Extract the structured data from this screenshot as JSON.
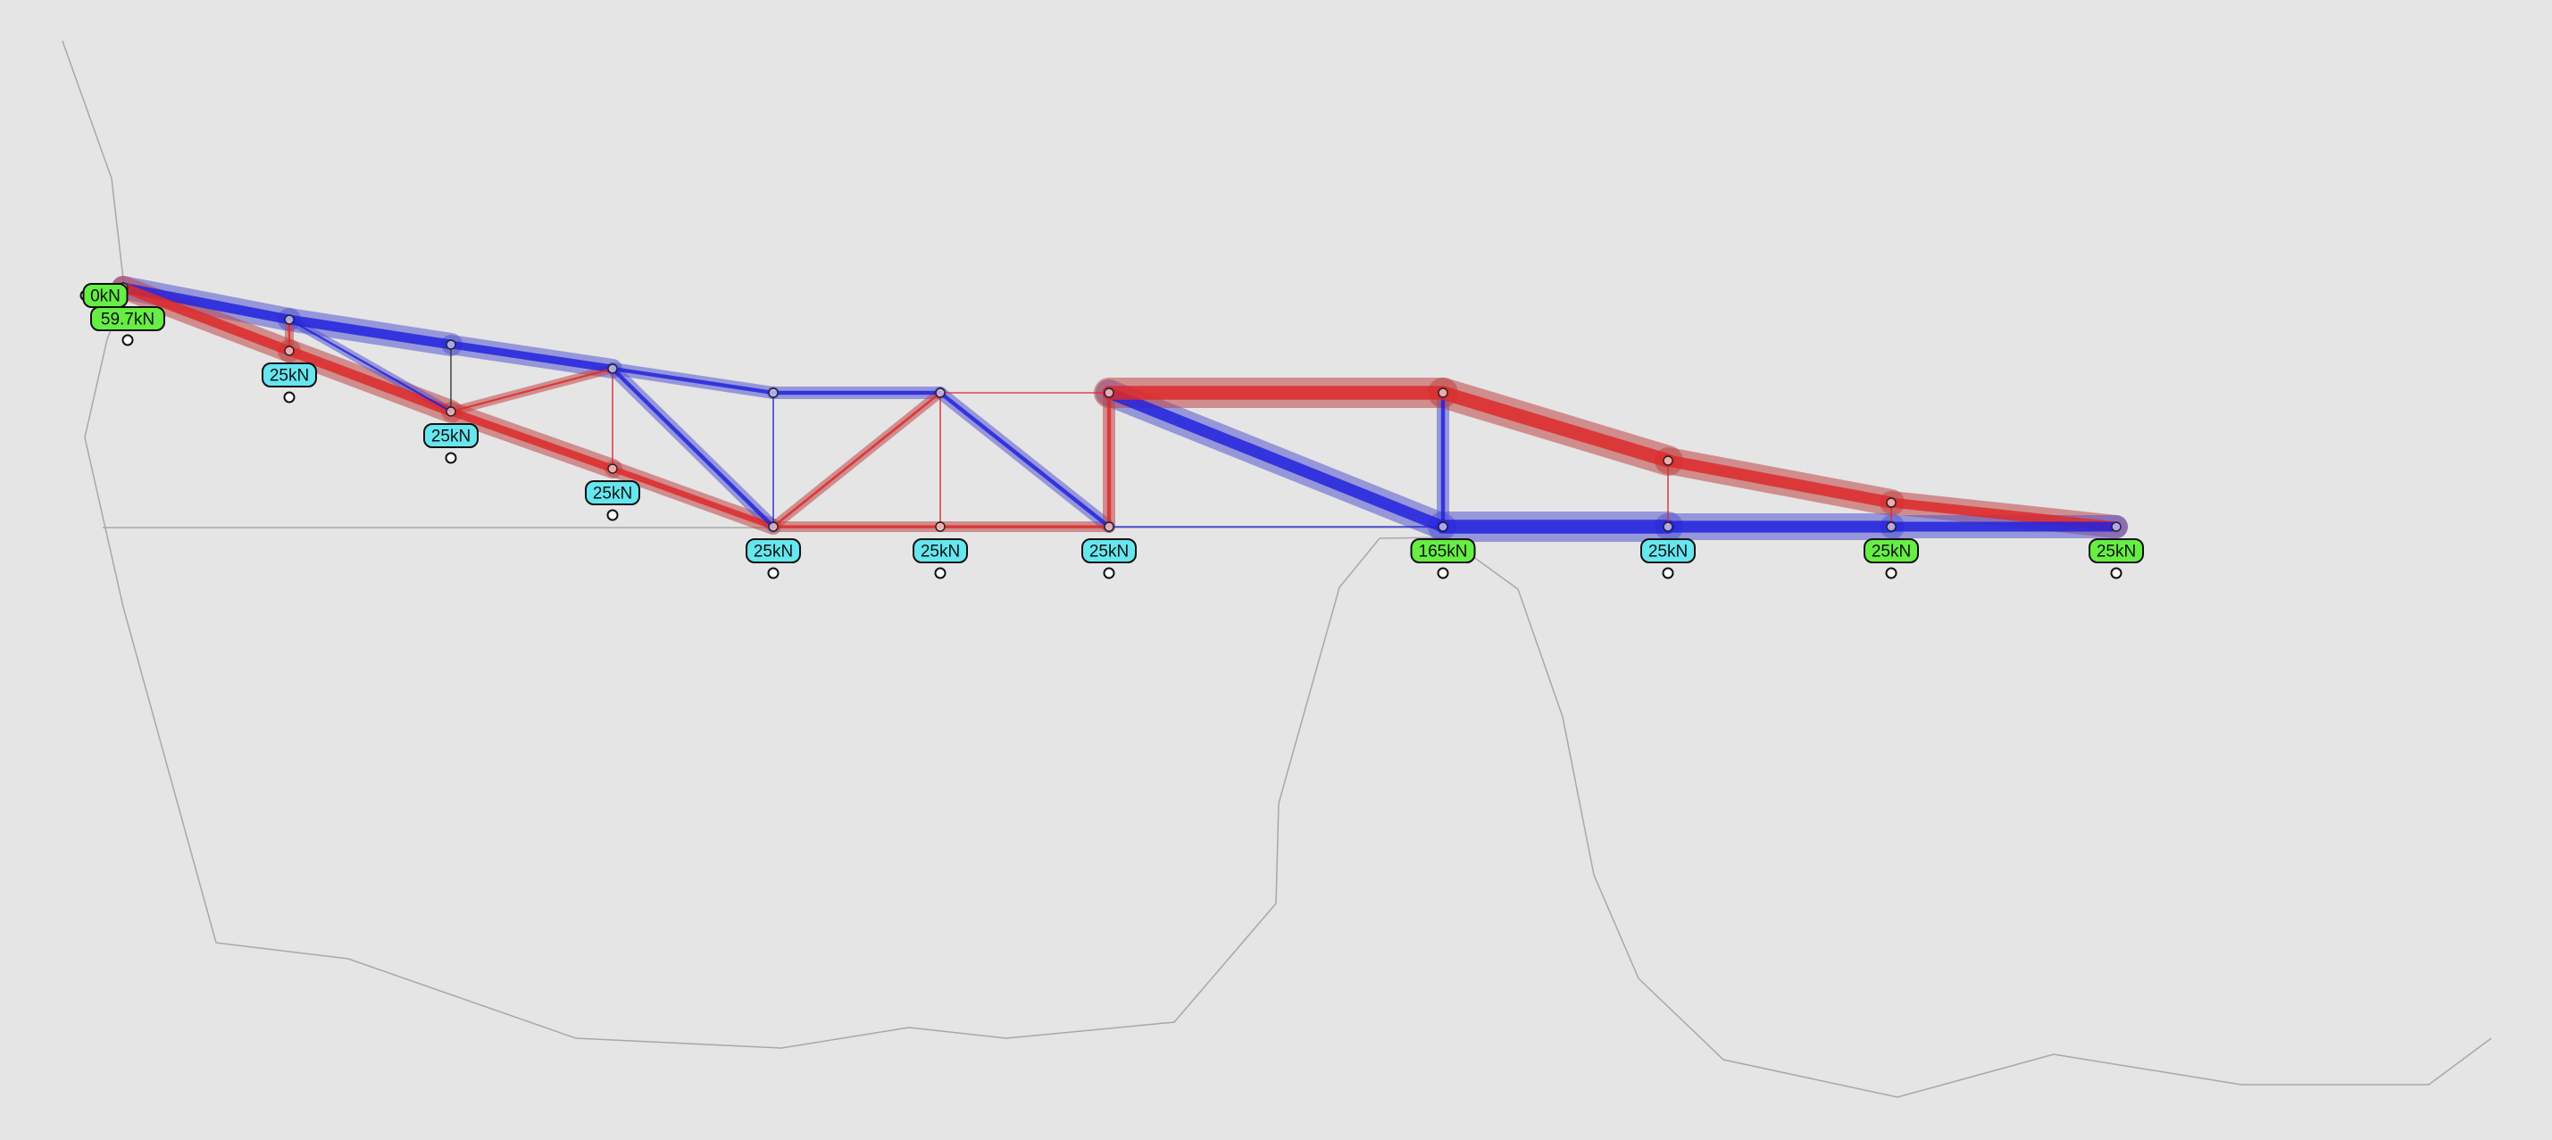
{
  "colors": {
    "background": "#e5e5e5",
    "compression": "#2222dd",
    "tension": "#dd2a2a",
    "compression_halo": "#5558d0",
    "tension_halo": "#c04545",
    "zero_force": "#333333",
    "terrain": "#a8a8a8",
    "support_badge_fill": "#66ee44",
    "load_badge_fill": "#66e6ee",
    "badge_stroke": "#111111"
  },
  "legend_meaning": {
    "blue": "compression",
    "red": "tension"
  },
  "nodes": [
    {
      "id": "N0",
      "label_text": "0kN",
      "reaction_text": "59.7kN",
      "kind": "support"
    },
    {
      "id": "T1",
      "kind": "node"
    },
    {
      "id": "B1",
      "label_text": "25kN",
      "kind": "load"
    },
    {
      "id": "T2",
      "kind": "node"
    },
    {
      "id": "B2",
      "label_text": "25kN",
      "kind": "load"
    },
    {
      "id": "T3",
      "kind": "node"
    },
    {
      "id": "B3",
      "label_text": "25kN",
      "kind": "load"
    },
    {
      "id": "T4",
      "kind": "node"
    },
    {
      "id": "B4",
      "label_text": "25kN",
      "kind": "load"
    },
    {
      "id": "T5",
      "kind": "node"
    },
    {
      "id": "B5",
      "label_text": "25kN",
      "kind": "load"
    },
    {
      "id": "T6",
      "kind": "node"
    },
    {
      "id": "B6",
      "label_text": "25kN",
      "kind": "load"
    },
    {
      "id": "T7",
      "kind": "node"
    },
    {
      "id": "B7",
      "label_text": "165kN",
      "kind": "support"
    },
    {
      "id": "T8",
      "kind": "node"
    },
    {
      "id": "B8",
      "label_text": "25kN",
      "kind": "load"
    },
    {
      "id": "T9",
      "kind": "node"
    },
    {
      "id": "B9",
      "label_text": "25kN",
      "kind": "support"
    },
    {
      "id": "B10",
      "label_text": "25kN",
      "kind": "support"
    }
  ],
  "members": [
    {
      "from": "N0",
      "to": "T1",
      "force": "compression",
      "magnitude": 5
    },
    {
      "from": "T1",
      "to": "T2",
      "force": "compression",
      "magnitude": 5
    },
    {
      "from": "T2",
      "to": "T3",
      "force": "compression",
      "magnitude": 4
    },
    {
      "from": "T3",
      "to": "T4",
      "force": "compression",
      "magnitude": 2
    },
    {
      "from": "T4",
      "to": "T5",
      "force": "compression",
      "magnitude": 2
    },
    {
      "from": "N0",
      "to": "B1",
      "force": "tension",
      "magnitude": 5
    },
    {
      "from": "B1",
      "to": "B2",
      "force": "tension",
      "magnitude": 5
    },
    {
      "from": "B2",
      "to": "B3",
      "force": "tension",
      "magnitude": 4
    },
    {
      "from": "B3",
      "to": "B4",
      "force": "tension",
      "magnitude": 3
    },
    {
      "from": "B4",
      "to": "B5",
      "force": "tension",
      "magnitude": 1.5
    },
    {
      "from": "B5",
      "to": "B6",
      "force": "tension",
      "magnitude": 1.5
    },
    {
      "from": "B6",
      "to": "B7",
      "force": "compression",
      "magnitude": 0.5
    },
    {
      "from": "T1",
      "to": "B1",
      "force": "tension",
      "magnitude": 1
    },
    {
      "from": "T1",
      "to": "B2",
      "force": "compression",
      "magnitude": 1
    },
    {
      "from": "T2",
      "to": "B2",
      "force": "zero",
      "magnitude": 0.3
    },
    {
      "from": "B2",
      "to": "T3",
      "force": "tension",
      "magnitude": 1
    },
    {
      "from": "T3",
      "to": "B3",
      "force": "tension",
      "magnitude": 0.6
    },
    {
      "from": "T3",
      "to": "B4",
      "force": "compression",
      "magnitude": 2
    },
    {
      "from": "T4",
      "to": "B4",
      "force": "compression",
      "magnitude": 0.5
    },
    {
      "from": "B4",
      "to": "T5",
      "force": "tension",
      "magnitude": 1.2
    },
    {
      "from": "T5",
      "to": "B5",
      "force": "tension",
      "magnitude": 0.5
    },
    {
      "from": "T5",
      "to": "B6",
      "force": "compression",
      "magnitude": 2
    },
    {
      "from": "T5",
      "to": "T6",
      "force": "tension",
      "magnitude": 0.4
    },
    {
      "from": "T6",
      "to": "B6",
      "force": "tension",
      "magnitude": 2
    },
    {
      "from": "T6",
      "to": "B7",
      "force": "compression",
      "magnitude": 6
    },
    {
      "from": "T6",
      "to": "T7",
      "force": "tension",
      "magnitude": 7
    },
    {
      "from": "T7",
      "to": "B7",
      "force": "compression",
      "magnitude": 2
    },
    {
      "from": "T7",
      "to": "T8",
      "force": "tension",
      "magnitude": 7
    },
    {
      "from": "T8",
      "to": "T9",
      "force": "tension",
      "magnitude": 6
    },
    {
      "from": "T9",
      "to": "B10",
      "force": "tension",
      "magnitude": 5
    },
    {
      "from": "B7",
      "to": "B8",
      "force": "compression",
      "magnitude": 7
    },
    {
      "from": "B8",
      "to": "B9",
      "force": "compression",
      "magnitude": 6
    },
    {
      "from": "B9",
      "to": "B10",
      "force": "compression",
      "magnitude": 5
    },
    {
      "from": "T8",
      "to": "B8",
      "force": "tension",
      "magnitude": 0.6
    },
    {
      "from": "T9",
      "to": "B9",
      "force": "tension",
      "magnitude": 0.6
    }
  ]
}
